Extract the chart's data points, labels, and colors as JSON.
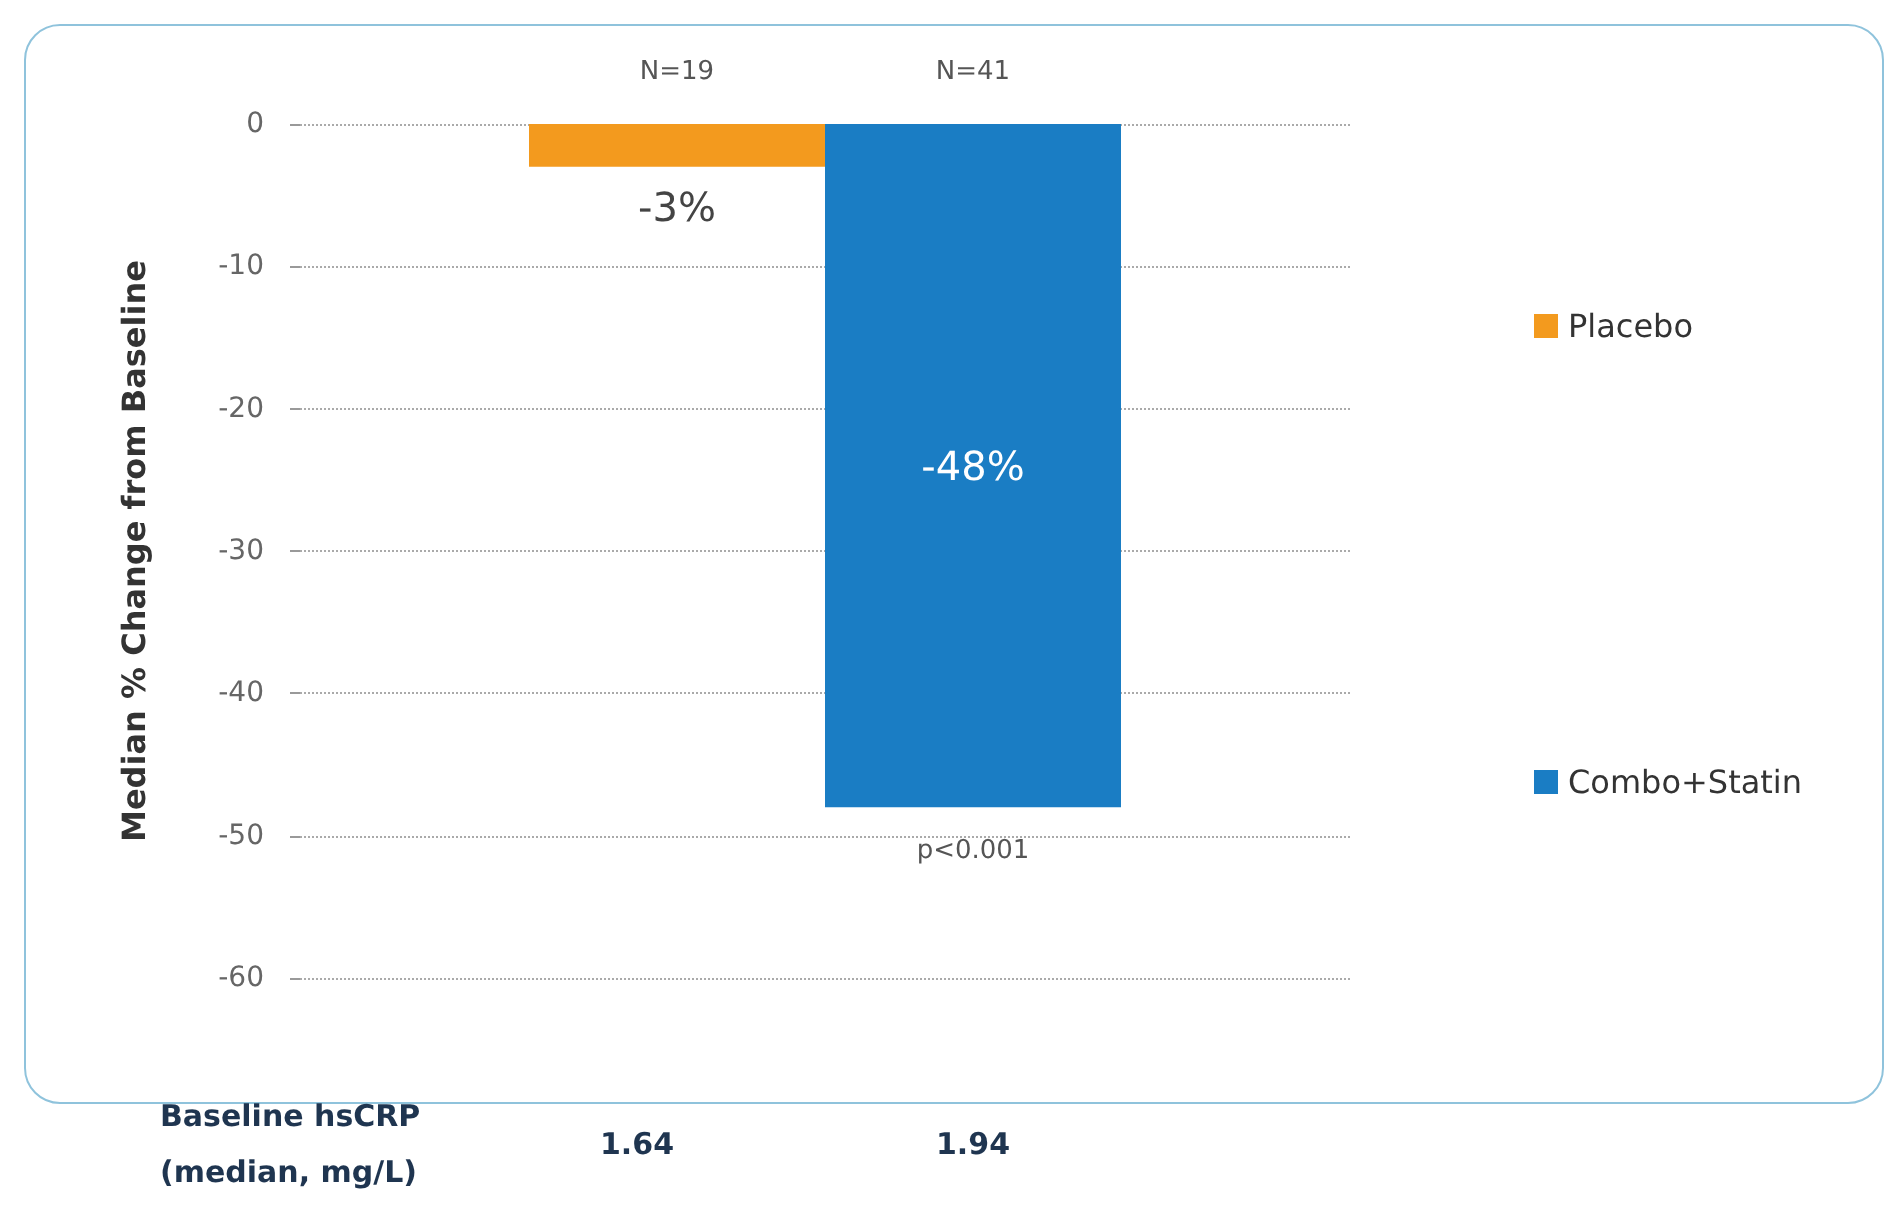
{
  "chart_data": {
    "type": "bar",
    "ylabel": "Median % Change from Baseline",
    "categories": [
      null
    ],
    "series": [
      {
        "name": "Placebo",
        "color": "#f39a1e",
        "values": [
          -3
        ],
        "value_labels": [
          "-3%"
        ]
      },
      {
        "name": "Combo+Statin",
        "color": "#1a7dc4",
        "values": [
          -48
        ],
        "value_labels": [
          "-48%"
        ]
      }
    ],
    "ylim": [
      -60,
      0
    ],
    "yticks": [
      -60,
      -50,
      -40,
      -30,
      -20,
      -10,
      0
    ],
    "grid": "y",
    "legend": "right",
    "annotations": [
      "N=19",
      "N=41",
      "p<0.001",
      "Baseline hsCRP\n(median, mg/L)",
      "1.64",
      "1.94"
    ]
  }
}
